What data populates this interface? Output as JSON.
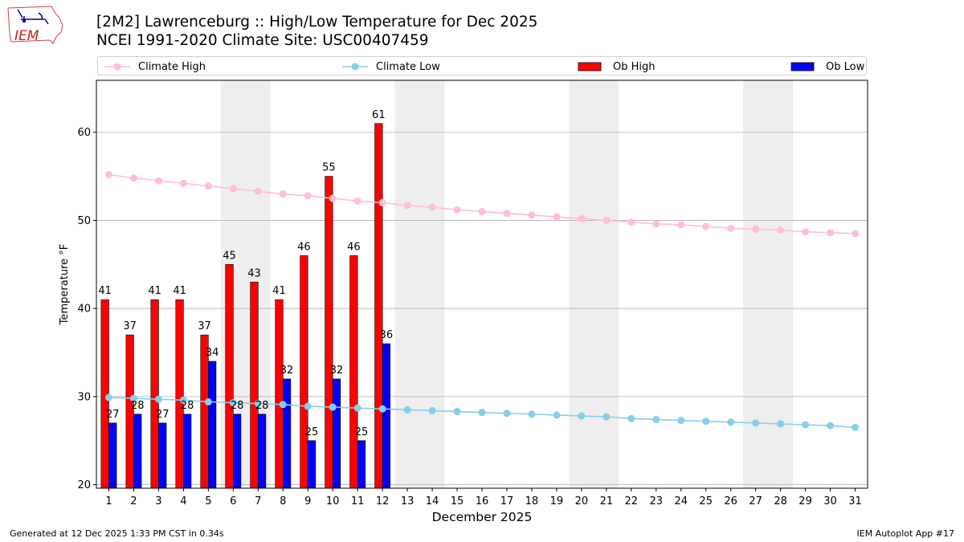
{
  "header": {
    "title_line1": "[2M2] Lawrenceburg :: High/Low Temperature for Dec 2025",
    "title_line2": "NCEI 1991-2020 Climate Site: USC00407459"
  },
  "logo": {
    "text": "IEM"
  },
  "footer": {
    "left": "Generated at 12 Dec 2025 1:33 PM CST in 0.34s",
    "right": "IEM Autoplot App #17"
  },
  "legend": {
    "climate_high": "Climate High",
    "climate_low": "Climate Low",
    "ob_high": "Ob High",
    "ob_low": "Ob Low"
  },
  "colors": {
    "climate_high": "#ffc0cb",
    "climate_low": "#87ceeb",
    "ob_high": "#ff0000",
    "ob_low": "#0000ff",
    "weekend_shade": "#eeeeee",
    "grid": "#b0b0b0"
  },
  "chart_data": {
    "type": "bar",
    "xlabel": "December 2025",
    "ylabel": "Temperature °F",
    "xlim": [
      0.5,
      31.5
    ],
    "ylim": [
      19.6,
      65.9
    ],
    "yticks": [
      20,
      30,
      40,
      50,
      60
    ],
    "grid": "horizontal",
    "legend_position": "top",
    "days": [
      1,
      2,
      3,
      4,
      5,
      6,
      7,
      8,
      9,
      10,
      11,
      12,
      13,
      14,
      15,
      16,
      17,
      18,
      19,
      20,
      21,
      22,
      23,
      24,
      25,
      26,
      27,
      28,
      29,
      30,
      31
    ],
    "weekend_ranges": [
      [
        6,
        7
      ],
      [
        13,
        14
      ],
      [
        20,
        21
      ],
      [
        27,
        28
      ]
    ],
    "series": [
      {
        "name": "Ob High",
        "kind": "bar",
        "days": [
          1,
          2,
          3,
          4,
          5,
          6,
          7,
          8,
          9,
          10,
          11,
          12
        ],
        "values": [
          41,
          37,
          41,
          41,
          37,
          45,
          43,
          41,
          46,
          55,
          46,
          61
        ]
      },
      {
        "name": "Ob Low",
        "kind": "bar",
        "days": [
          1,
          2,
          3,
          4,
          5,
          6,
          7,
          8,
          9,
          10,
          11,
          12
        ],
        "values": [
          27,
          28,
          27,
          28,
          34,
          28,
          28,
          32,
          25,
          32,
          25,
          36
        ]
      },
      {
        "name": "Climate High",
        "kind": "line",
        "values": [
          55.2,
          54.8,
          54.5,
          54.2,
          53.9,
          53.6,
          53.3,
          53.0,
          52.8,
          52.5,
          52.2,
          52.0,
          51.7,
          51.5,
          51.2,
          51.0,
          50.8,
          50.6,
          50.4,
          50.2,
          50.0,
          49.8,
          49.6,
          49.5,
          49.3,
          49.1,
          49.0,
          48.9,
          48.7,
          48.6,
          48.5
        ]
      },
      {
        "name": "Climate Low",
        "kind": "line",
        "values": [
          29.9,
          29.8,
          29.7,
          29.6,
          29.4,
          29.3,
          29.2,
          29.1,
          28.9,
          28.8,
          28.7,
          28.6,
          28.5,
          28.4,
          28.3,
          28.2,
          28.1,
          28.0,
          27.9,
          27.8,
          27.7,
          27.5,
          27.4,
          27.3,
          27.2,
          27.1,
          27.0,
          26.9,
          26.8,
          26.7,
          26.5
        ]
      }
    ]
  }
}
